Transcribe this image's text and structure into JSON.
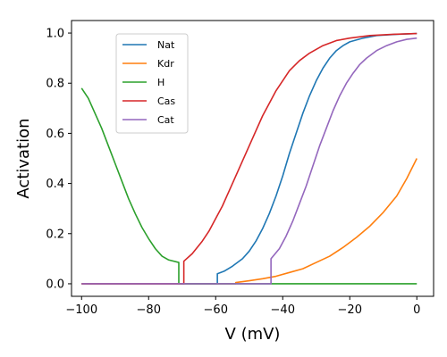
{
  "chart_data": {
    "type": "line",
    "xlabel": "V (mV)",
    "ylabel": "Activation",
    "xlim": [
      -103,
      5
    ],
    "ylim": [
      -0.05,
      1.05
    ],
    "x_ticks": [
      -100,
      -80,
      -60,
      -40,
      -20,
      0
    ],
    "x_tick_labels": [
      "−100",
      "−80",
      "−60",
      "−40",
      "−20",
      "0"
    ],
    "y_ticks": [
      0.0,
      0.2,
      0.4,
      0.6,
      0.8,
      1.0
    ],
    "y_tick_labels": [
      "0.0",
      "0.2",
      "0.4",
      "0.6",
      "0.8",
      "1.0"
    ],
    "grid": false,
    "legend_position": "top-left",
    "series": [
      {
        "name": "Nat",
        "color": "#1f77b4",
        "points": [
          [
            -100,
            0
          ],
          [
            -59.5,
            0
          ],
          [
            -59.5,
            0.04
          ],
          [
            -57.5,
            0.05
          ],
          [
            -55,
            0.07
          ],
          [
            -52,
            0.1
          ],
          [
            -50,
            0.13
          ],
          [
            -48,
            0.17
          ],
          [
            -46,
            0.22
          ],
          [
            -44,
            0.28
          ],
          [
            -42,
            0.35
          ],
          [
            -40,
            0.43
          ],
          [
            -38,
            0.52
          ],
          [
            -36,
            0.6
          ],
          [
            -34,
            0.68
          ],
          [
            -32,
            0.75
          ],
          [
            -30,
            0.81
          ],
          [
            -28,
            0.86
          ],
          [
            -26,
            0.9
          ],
          [
            -24,
            0.93
          ],
          [
            -22,
            0.95
          ],
          [
            -20,
            0.965
          ],
          [
            -16,
            0.98
          ],
          [
            -12,
            0.99
          ],
          [
            -6,
            0.995
          ],
          [
            0,
            0.998
          ]
        ]
      },
      {
        "name": "Kdr",
        "color": "#ff7f0e",
        "points": [
          [
            -100,
            0
          ],
          [
            -54,
            0
          ],
          [
            -54,
            0.005
          ],
          [
            -50,
            0.012
          ],
          [
            -46,
            0.02
          ],
          [
            -42,
            0.03
          ],
          [
            -38,
            0.045
          ],
          [
            -34,
            0.06
          ],
          [
            -30,
            0.085
          ],
          [
            -26,
            0.11
          ],
          [
            -22,
            0.145
          ],
          [
            -18,
            0.185
          ],
          [
            -14,
            0.23
          ],
          [
            -10,
            0.285
          ],
          [
            -6,
            0.35
          ],
          [
            -3,
            0.42
          ],
          [
            0,
            0.5
          ]
        ]
      },
      {
        "name": "H",
        "color": "#2ca02c",
        "points": [
          [
            -100,
            0.78
          ],
          [
            -98,
            0.74
          ],
          [
            -96,
            0.68
          ],
          [
            -94,
            0.62
          ],
          [
            -92,
            0.55
          ],
          [
            -90,
            0.48
          ],
          [
            -88,
            0.41
          ],
          [
            -86,
            0.34
          ],
          [
            -84,
            0.28
          ],
          [
            -82,
            0.225
          ],
          [
            -80,
            0.18
          ],
          [
            -78,
            0.14
          ],
          [
            -76,
            0.11
          ],
          [
            -74,
            0.095
          ],
          [
            -71,
            0.085
          ],
          [
            -71,
            0
          ],
          [
            0,
            0
          ]
        ]
      },
      {
        "name": "Cas",
        "color": "#d62728",
        "points": [
          [
            -100,
            0
          ],
          [
            -69.5,
            0
          ],
          [
            -69.5,
            0.09
          ],
          [
            -67,
            0.12
          ],
          [
            -64,
            0.17
          ],
          [
            -62,
            0.21
          ],
          [
            -60,
            0.26
          ],
          [
            -58,
            0.31
          ],
          [
            -56,
            0.37
          ],
          [
            -54,
            0.43
          ],
          [
            -52,
            0.49
          ],
          [
            -50,
            0.55
          ],
          [
            -48,
            0.61
          ],
          [
            -46,
            0.67
          ],
          [
            -44,
            0.72
          ],
          [
            -42,
            0.77
          ],
          [
            -40,
            0.81
          ],
          [
            -38,
            0.85
          ],
          [
            -35,
            0.89
          ],
          [
            -32,
            0.92
          ],
          [
            -28,
            0.95
          ],
          [
            -24,
            0.97
          ],
          [
            -20,
            0.98
          ],
          [
            -14,
            0.99
          ],
          [
            -7,
            0.995
          ],
          [
            0,
            0.998
          ]
        ]
      },
      {
        "name": "Cat",
        "color": "#9467bd",
        "points": [
          [
            -100,
            0
          ],
          [
            -43.5,
            0
          ],
          [
            -43.5,
            0.1
          ],
          [
            -41,
            0.14
          ],
          [
            -39,
            0.19
          ],
          [
            -37,
            0.25
          ],
          [
            -35,
            0.32
          ],
          [
            -33,
            0.39
          ],
          [
            -31,
            0.47
          ],
          [
            -29,
            0.55
          ],
          [
            -27,
            0.62
          ],
          [
            -25,
            0.69
          ],
          [
            -23,
            0.75
          ],
          [
            -21,
            0.8
          ],
          [
            -19,
            0.84
          ],
          [
            -17,
            0.875
          ],
          [
            -15,
            0.9
          ],
          [
            -12,
            0.93
          ],
          [
            -9,
            0.95
          ],
          [
            -6,
            0.965
          ],
          [
            -3,
            0.975
          ],
          [
            0,
            0.98
          ]
        ]
      }
    ]
  }
}
